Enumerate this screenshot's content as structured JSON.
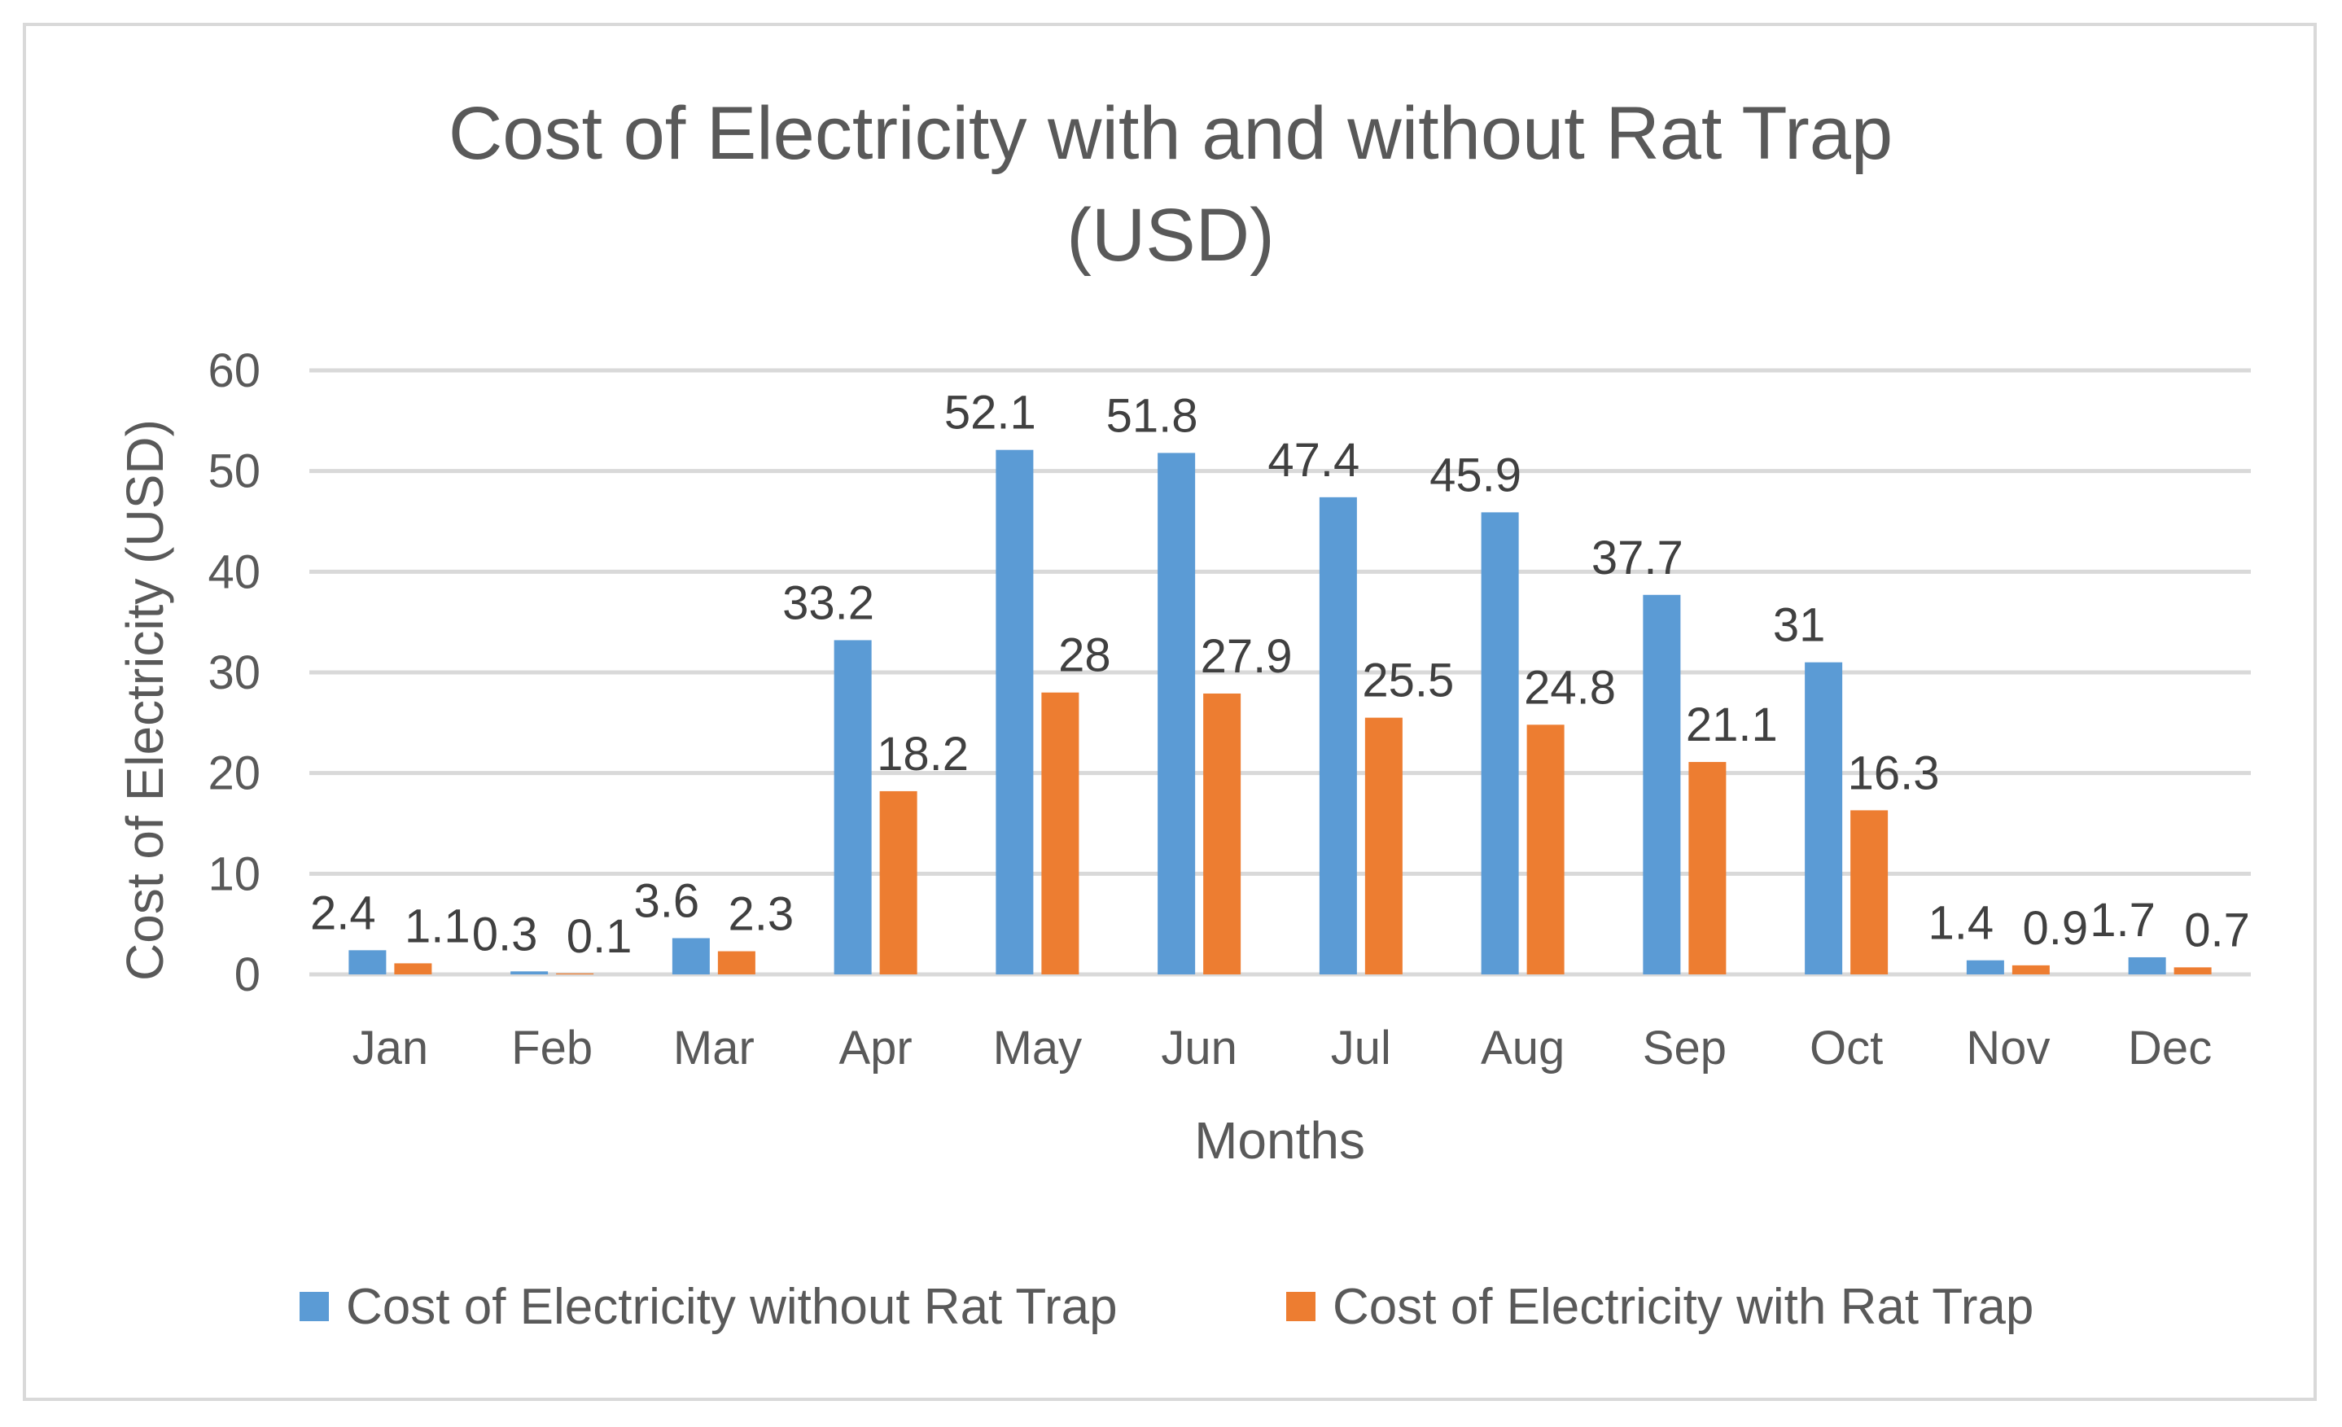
{
  "chart_data": {
    "type": "bar",
    "title": "Cost of Electricity with and without Rat Trap (USD)",
    "title_lines": [
      "Cost of Electricity with and without Rat Trap",
      "(USD)"
    ],
    "xlabel": "Months",
    "ylabel": "Cost of Electricity (USD)",
    "ylim": [
      0,
      60
    ],
    "yticks": [
      0,
      10,
      20,
      30,
      40,
      50,
      60
    ],
    "grid": true,
    "legend_position": "bottom",
    "categories": [
      "Jan",
      "Feb",
      "Mar",
      "Apr",
      "May",
      "Jun",
      "Jul",
      "Aug",
      "Sep",
      "Oct",
      "Nov",
      "Dec"
    ],
    "series": [
      {
        "name": "Cost of Electricity without Rat Trap",
        "color": "#5b9bd5",
        "values": [
          2.4,
          0.3,
          3.6,
          33.2,
          52.1,
          51.8,
          47.4,
          45.9,
          37.7,
          31,
          1.4,
          1.7
        ]
      },
      {
        "name": "Cost of Electricity with Rat Trap",
        "color": "#ed7d31",
        "values": [
          1.1,
          0.1,
          2.3,
          18.2,
          28,
          27.9,
          25.5,
          24.8,
          21.1,
          16.3,
          0.9,
          0.7
        ]
      }
    ]
  }
}
